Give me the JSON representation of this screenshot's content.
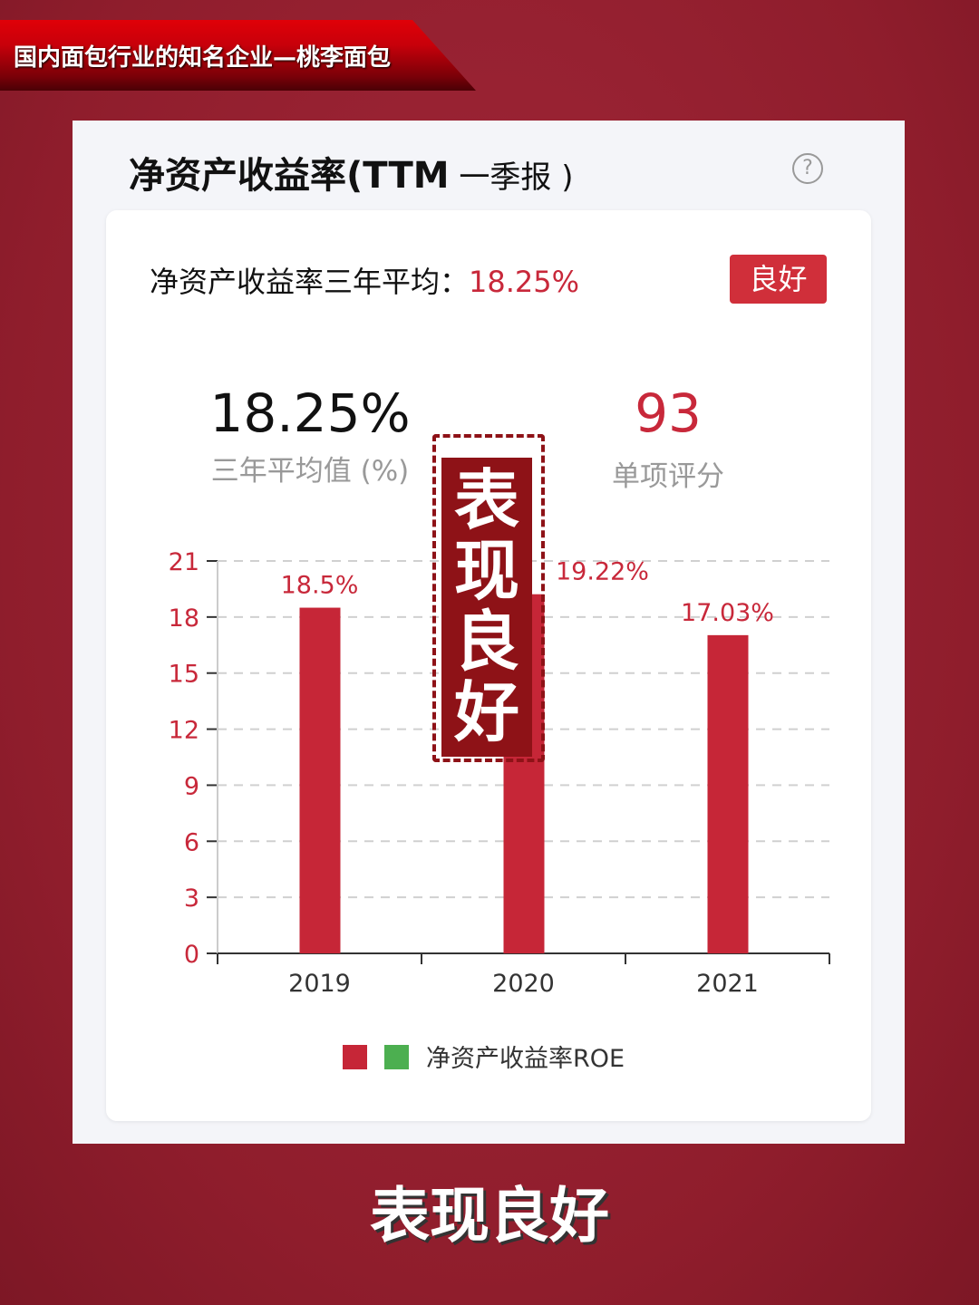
{
  "banner": {
    "title": "国内面包行业的知名企业—桃李面包"
  },
  "panel": {
    "title_main": "净资产收益率(TTM",
    "title_sub": " 一季报 )",
    "help_icon": "question-circle-icon"
  },
  "summary": {
    "label": "净资产收益率三年平均：",
    "value": "18.25%",
    "badge": "良好"
  },
  "stats": {
    "avg_value": "18.25%",
    "avg_label": "三年平均值 (%)",
    "score_value": "93",
    "score_label": "单项评分"
  },
  "stamp": {
    "text": "表现良好"
  },
  "caption": "表现良好",
  "colors": {
    "bar": "#c62637",
    "accent": "#c8283a",
    "legend_green": "#4caf50"
  },
  "chart_data": {
    "type": "bar",
    "categories": [
      "2019",
      "2020",
      "2021"
    ],
    "series": [
      {
        "name": "净资产收益率ROE",
        "values": [
          18.5,
          19.22,
          17.03
        ]
      }
    ],
    "data_labels": [
      "18.5%",
      "19.22%",
      "17.03%"
    ],
    "yticks": [
      0,
      3,
      6,
      9,
      12,
      15,
      18,
      21
    ],
    "ylim": [
      0,
      21
    ],
    "grid": "dashed horizontal",
    "legend": "bottom-center"
  }
}
